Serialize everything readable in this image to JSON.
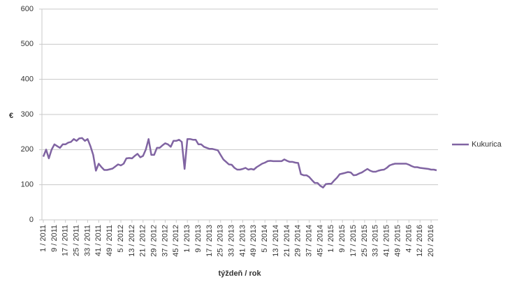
{
  "chart_data": {
    "type": "line",
    "y_label": "€",
    "x_label": "týždeň / rok",
    "categories": [
      "1 / 2011",
      null,
      null,
      null,
      "9 / 2011",
      null,
      null,
      null,
      "17 / 2011",
      null,
      null,
      null,
      "25 / 2011",
      null,
      null,
      null,
      "33 / 2011",
      null,
      null,
      null,
      "41 / 2011",
      null,
      null,
      null,
      "49 / 2011",
      null,
      null,
      null,
      "5 / 2012",
      null,
      null,
      null,
      "13 / 2012",
      null,
      null,
      null,
      "21 / 2012",
      null,
      null,
      null,
      "29 / 2012",
      null,
      null,
      null,
      "37 / 2012",
      null,
      null,
      null,
      "45 / 2012",
      null,
      null,
      null,
      "1 / 2013",
      null,
      null,
      null,
      "9 / 2013",
      null,
      null,
      null,
      "17 / 2013",
      null,
      null,
      null,
      "25 / 2013",
      null,
      null,
      null,
      "33 / 2013",
      null,
      null,
      null,
      "41 / 2013",
      null,
      null,
      null,
      "49 / 2013",
      null,
      null,
      null,
      "5 / 2014",
      null,
      null,
      null,
      "13 / 2014",
      null,
      null,
      null,
      "21 / 2014",
      null,
      null,
      null,
      "29 / 2014",
      null,
      null,
      null,
      "37 / 2014",
      null,
      null,
      null,
      "45 / 2014",
      null,
      null,
      null,
      "1 / 2015",
      null,
      null,
      null,
      "9 / 2015",
      null,
      null,
      null,
      "17 / 2015",
      null,
      null,
      null,
      "25 / 2015",
      null,
      null,
      null,
      "33 / 2015",
      null,
      null,
      null,
      "41 / 2015",
      null,
      null,
      null,
      "49 / 2015",
      null,
      null,
      null,
      "4 / 2016",
      null,
      null,
      null,
      "12 / 2016",
      null,
      null,
      null,
      "20 / 2016",
      null,
      null
    ],
    "series": [
      {
        "name": "Kukurica",
        "color": "#8064a2",
        "values": [
          180,
          200,
          175,
          200,
          215,
          210,
          205,
          215,
          215,
          220,
          222,
          230,
          225,
          232,
          233,
          225,
          230,
          210,
          185,
          140,
          160,
          150,
          142,
          142,
          144,
          146,
          152,
          158,
          155,
          160,
          175,
          176,
          175,
          182,
          188,
          178,
          182,
          200,
          230,
          185,
          185,
          205,
          205,
          212,
          218,
          215,
          208,
          225,
          225,
          228,
          222,
          145,
          230,
          230,
          228,
          228,
          215,
          215,
          208,
          205,
          202,
          202,
          200,
          198,
          185,
          172,
          165,
          158,
          157,
          148,
          143,
          143,
          145,
          148,
          143,
          145,
          143,
          150,
          155,
          160,
          163,
          167,
          168,
          167,
          167,
          167,
          167,
          172,
          168,
          165,
          165,
          163,
          162,
          130,
          127,
          127,
          122,
          113,
          105,
          105,
          97,
          92,
          102,
          103,
          103,
          112,
          120,
          130,
          132,
          134,
          136,
          135,
          127,
          128,
          132,
          135,
          140,
          145,
          140,
          137,
          137,
          140,
          142,
          143,
          148,
          155,
          158,
          160,
          160,
          160,
          160,
          160,
          157,
          153,
          150,
          150,
          148,
          147,
          146,
          145,
          143,
          143,
          141
        ]
      }
    ],
    "ylim": [
      0,
      600
    ],
    "yticks": [
      0,
      100,
      200,
      300,
      400,
      500,
      600
    ],
    "grid": true,
    "legend": "right"
  }
}
